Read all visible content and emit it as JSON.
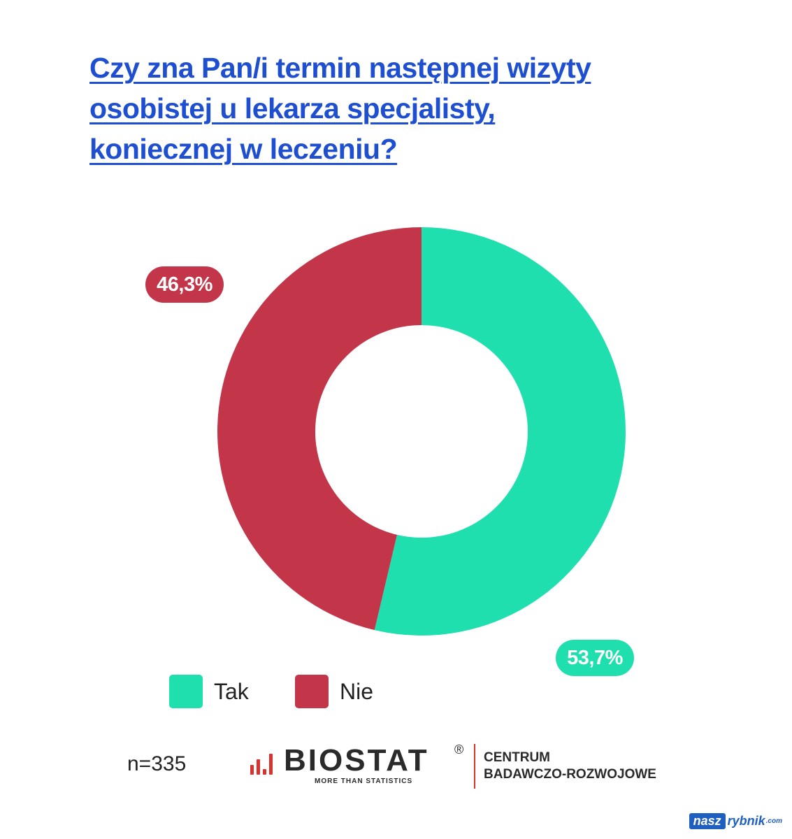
{
  "title_lines": [
    "Czy zna Pan/i termin następnej wizyty",
    "osobistej u lekarza specjalisty,",
    "koniecznej w leczeniu?"
  ],
  "chart_data": {
    "type": "pie",
    "title": "Czy zna Pan/i termin następnej wizyty osobistej u lekarza specjalisty, koniecznej w leczeniu?",
    "donut": true,
    "categories": [
      "Tak",
      "Nie"
    ],
    "values": [
      53.7,
      46.3
    ],
    "labels": [
      "53,7%",
      "46,3%"
    ],
    "colors": [
      "#1fdfaf",
      "#c3364a"
    ],
    "legend_position": "bottom-left"
  },
  "legend": [
    {
      "label": "Tak",
      "color": "#1fdfaf"
    },
    {
      "label": "Nie",
      "color": "#c3364a"
    }
  ],
  "sample_size": "n=335",
  "logo": {
    "word": "BIOSTAT",
    "registered": "®",
    "tagline": "MORE THAN STATISTICS",
    "centre_lines": [
      "CENTRUM",
      "BADAWCZO-ROZWOJOWE"
    ],
    "accent": "#d8332f"
  },
  "watermark": {
    "part1": "nasz",
    "part2": "rybnik",
    "part3": ".com"
  }
}
